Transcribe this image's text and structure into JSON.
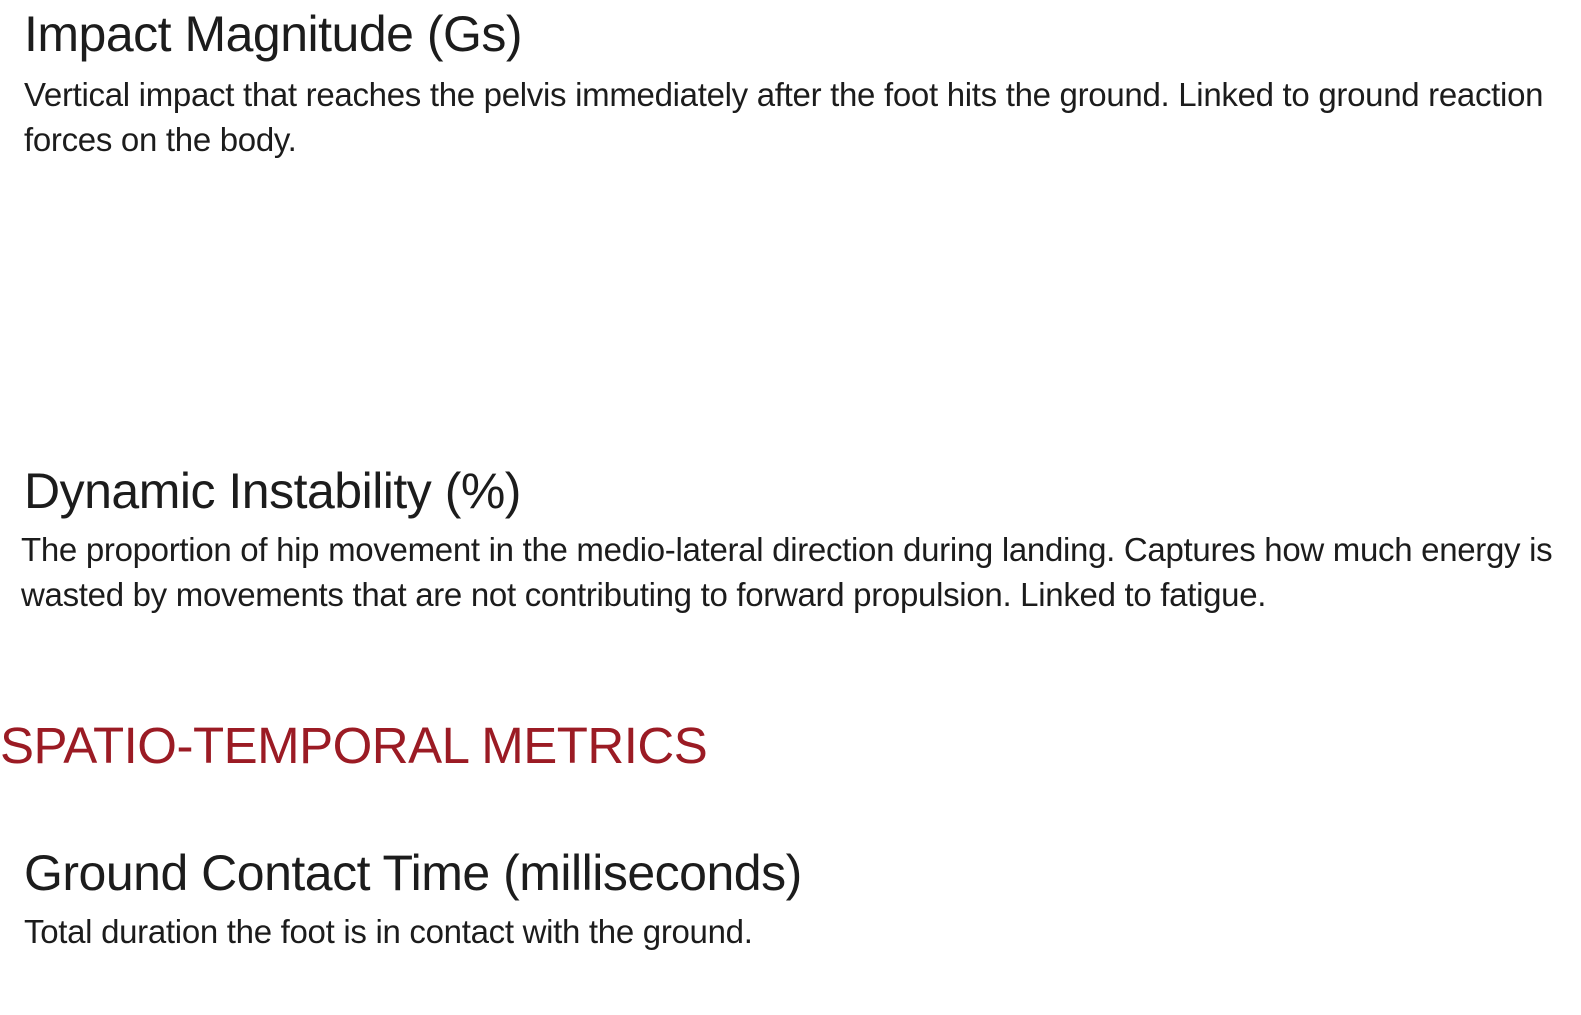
{
  "metrics": {
    "impact_magnitude": {
      "title": "Impact Magnitude (Gs)",
      "description": "Vertical impact that reaches the pelvis immediately after the foot hits the ground. Linked to ground reaction forces on the body."
    },
    "dynamic_instability": {
      "title": "Dynamic Instability (%)",
      "description": "The proportion of hip movement in the medio-lateral direction during landing. Captures how much energy is wasted by movements that are not contributing to forward propulsion. Linked to fatigue."
    }
  },
  "section": {
    "heading": "SPATIO-TEMPORAL METRICS",
    "heading_color": "#9b1b24"
  },
  "spatio_temporal": {
    "ground_contact_time": {
      "title": "Ground Contact Time (milliseconds)",
      "description": "Total duration the foot is in contact with the ground."
    }
  }
}
